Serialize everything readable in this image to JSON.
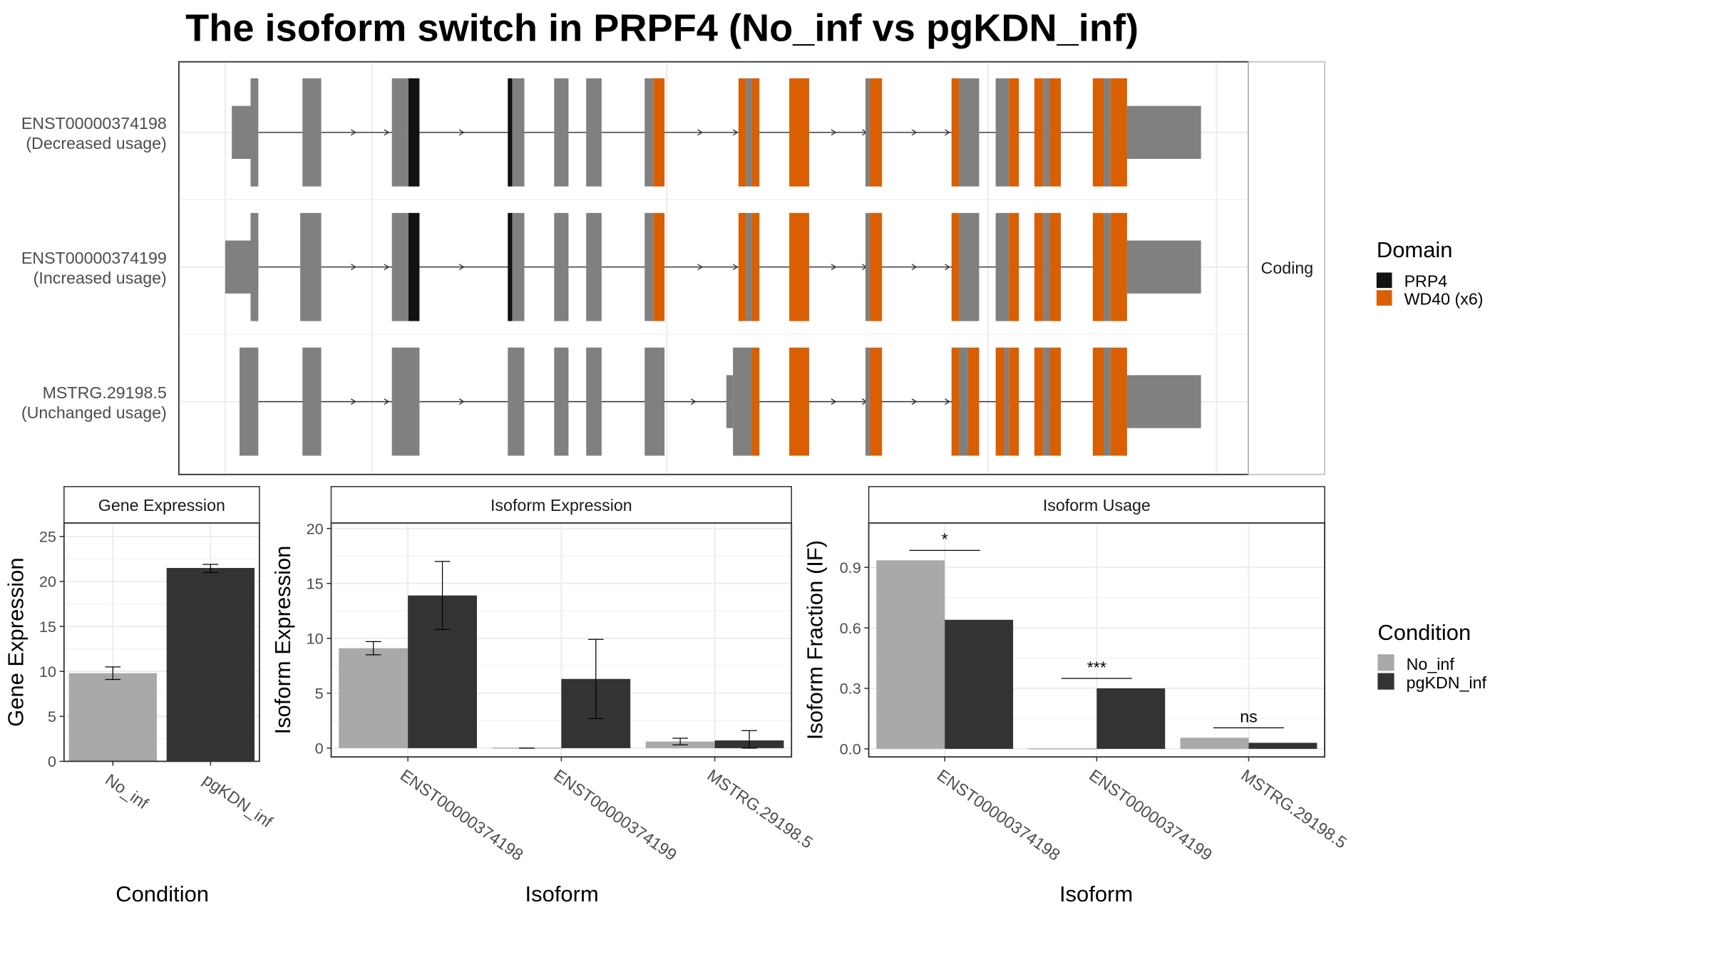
{
  "title": "The isoform switch in PRPF4 (No_inf vs pgKDN_inf)",
  "colors": {
    "exon": "#808080",
    "PRP4": "#111111",
    "WD40": "#D95F02",
    "No_inf": "#A9A9A9",
    "pgKDN_inf": "#333333",
    "panel_border": "#333333",
    "grid": "#EBEBEB"
  },
  "transcripts": {
    "facet_label": "Coding",
    "rows": [
      {
        "id": "ENST00000374198",
        "usage": "(Decreased usage)"
      },
      {
        "id": "ENST00000374199",
        "usage": "(Increased usage)"
      },
      {
        "id": "MSTRG.29198.5",
        "usage": "(Unchanged usage)"
      }
    ],
    "domain_legend": {
      "title": "Domain",
      "items": [
        {
          "label": "PRP4",
          "color": "#111111"
        },
        {
          "label": "WD40 (x6)",
          "color": "#D95F02"
        }
      ]
    }
  },
  "condition_legend": {
    "title": "Condition",
    "items": [
      {
        "label": "No_inf",
        "color": "#A9A9A9"
      },
      {
        "label": "pgKDN_inf",
        "color": "#333333"
      }
    ]
  },
  "chart_data": [
    {
      "type": "bar",
      "title": "Gene Expression",
      "xlabel": "Condition",
      "ylabel": "Gene Expression",
      "categories": [
        "No_inf",
        "pgKDN_inf"
      ],
      "values": [
        9.8,
        21.5
      ],
      "errors": [
        [
          9.1,
          10.5
        ],
        [
          21.0,
          21.9
        ]
      ],
      "ylim": [
        0,
        26.5
      ],
      "yticks": [
        0,
        5,
        10,
        15,
        20,
        25
      ],
      "grid": true,
      "legend": "none"
    },
    {
      "type": "bar",
      "title": "Isoform Expression",
      "xlabel": "Isoform",
      "ylabel": "Isoform Expression",
      "categories": [
        "ENST00000374198",
        "ENST00000374199",
        "MSTRG.29198.5"
      ],
      "series": [
        {
          "name": "No_inf",
          "values": [
            9.1,
            0.0,
            0.6
          ],
          "errors": [
            [
              8.5,
              9.7
            ],
            [
              0.0,
              0.0
            ],
            [
              0.3,
              0.9
            ]
          ]
        },
        {
          "name": "pgKDN_inf",
          "values": [
            13.9,
            6.3,
            0.7
          ],
          "errors": [
            [
              10.8,
              17.0
            ],
            [
              2.7,
              9.9
            ],
            [
              0.0,
              1.6
            ]
          ]
        }
      ],
      "ylim": [
        -0.8,
        20.5
      ],
      "yticks": [
        0,
        5,
        10,
        15,
        20
      ],
      "grid": true,
      "legend": "right"
    },
    {
      "type": "bar",
      "title": "Isoform Usage",
      "xlabel": "Isoform",
      "ylabel": "Isoform Fraction (IF)",
      "categories": [
        "ENST00000374198",
        "ENST00000374199",
        "MSTRG.29198.5"
      ],
      "series": [
        {
          "name": "No_inf",
          "values": [
            0.935,
            0.0,
            0.055
          ]
        },
        {
          "name": "pgKDN_inf",
          "values": [
            0.64,
            0.3,
            0.03
          ]
        }
      ],
      "significance": [
        "*",
        "***",
        "ns"
      ],
      "ylim": [
        -0.04,
        1.12
      ],
      "yticks": [
        "0.0",
        "0.3",
        "0.6",
        "0.9"
      ],
      "grid": true,
      "legend": "right"
    }
  ]
}
